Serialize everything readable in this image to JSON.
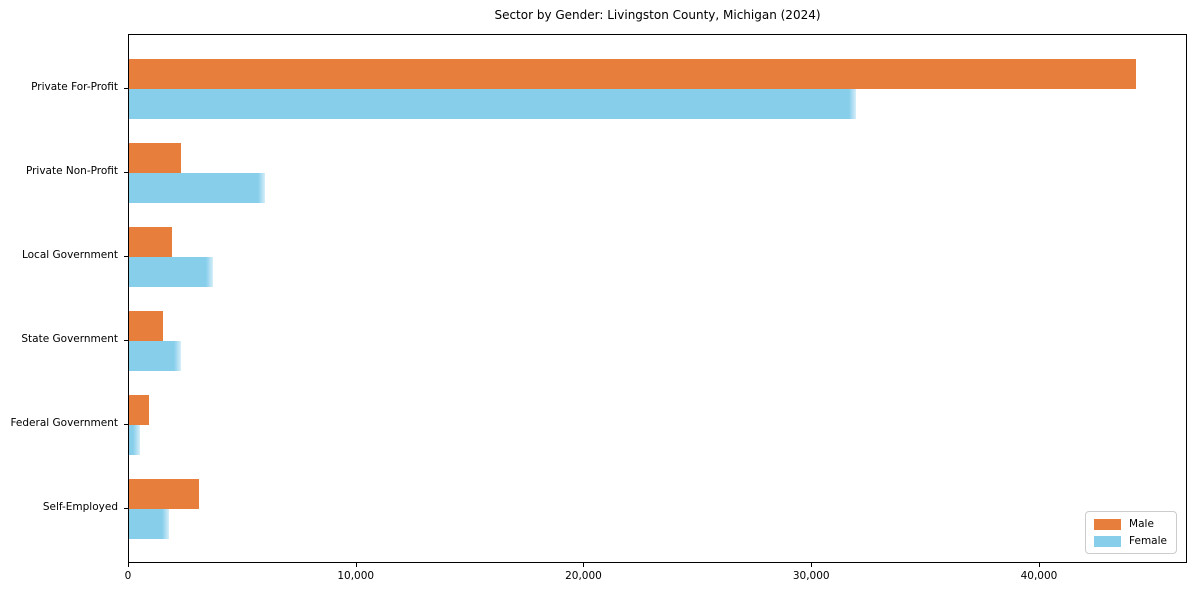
{
  "chart_data": {
    "type": "bar",
    "orientation": "horizontal",
    "title": "Sector by Gender: Livingston County, Michigan (2024)",
    "categories": [
      "Private For-Profit",
      "Private Non-Profit",
      "Local Government",
      "State Government",
      "Federal Government",
      "Self-Employed"
    ],
    "series": [
      {
        "name": "Male",
        "color": "#E87E3C",
        "values": [
          44300,
          2300,
          1900,
          1500,
          900,
          3100
        ]
      },
      {
        "name": "Female",
        "color": "#87CEEB",
        "values": [
          32000,
          6000,
          3700,
          2300,
          500,
          1750
        ]
      }
    ],
    "xlabel": "",
    "ylabel": "",
    "xlim": [
      0,
      46500
    ],
    "xticks": [
      {
        "value": 0,
        "label": "0"
      },
      {
        "value": 10000,
        "label": "10,000"
      },
      {
        "value": 20000,
        "label": "20,000"
      },
      {
        "value": 30000,
        "label": "30,000"
      },
      {
        "value": 40000,
        "label": "40,000"
      }
    ],
    "grid": false,
    "legend": {
      "position": "lower right",
      "entries": [
        "Male",
        "Female"
      ]
    },
    "colors": {
      "background": "#ffffff",
      "axis_border": "#000000",
      "legend_border": "#cccccc",
      "text": "#000000"
    }
  }
}
